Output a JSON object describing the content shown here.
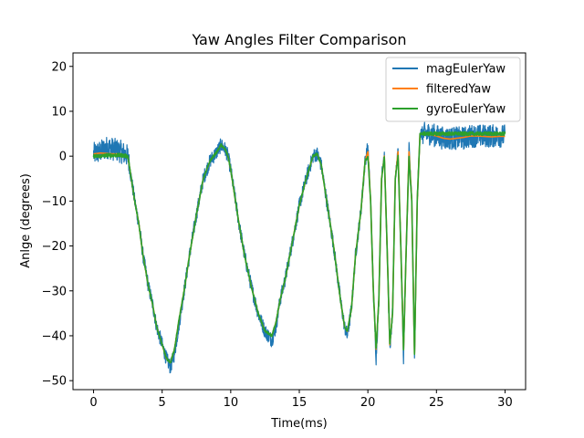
{
  "chart_data": {
    "type": "line",
    "title": "Yaw Angles Filter Comparison",
    "xlabel": "Time(ms)",
    "ylabel": "Anlge (degrees)",
    "xlim": [
      -1.5,
      31.5
    ],
    "ylim": [
      -52,
      23
    ],
    "xticks": [
      0,
      5,
      10,
      15,
      20,
      25,
      30
    ],
    "yticks": [
      20,
      10,
      0,
      -10,
      -20,
      -30,
      -40,
      -50
    ],
    "grid": false,
    "legend": "top-right",
    "series": [
      {
        "name": "magEulerYaw",
        "color": "#1f77b4",
        "noise": "high",
        "x": [
          0,
          0.5,
          1,
          1.5,
          2,
          2.5,
          3,
          3.3,
          3.6,
          4,
          4.3,
          4.6,
          5,
          5.3,
          5.6,
          5.9,
          6.2,
          6.6,
          7,
          7.5,
          8,
          8.5,
          9,
          9.3,
          9.6,
          9.8,
          10,
          10.3,
          10.6,
          11,
          11.5,
          12,
          12.5,
          13,
          13.3,
          13.6,
          14,
          14.5,
          15,
          15.5,
          16,
          16.3,
          16.6,
          17,
          17.5,
          18,
          18.3,
          18.5,
          18.8,
          19.1,
          19.5,
          19.8,
          20,
          20.2,
          20.4,
          20.6,
          20.8,
          21,
          21.2,
          21.4,
          21.6,
          21.8,
          22,
          22.2,
          22.4,
          22.6,
          22.8,
          23,
          23.2,
          23.4,
          23.6,
          23.8,
          24,
          24.5,
          25,
          25.5,
          26,
          26.5,
          27,
          27.5,
          28,
          28.5,
          29,
          29.5,
          30
        ],
        "y": [
          0.5,
          1,
          2,
          1.5,
          1,
          0,
          -10,
          -15,
          -22,
          -29,
          -33,
          -38,
          -42,
          -45,
          -47,
          -44,
          -38,
          -30,
          -22,
          -13,
          -5,
          -1,
          1,
          2.5,
          1.5,
          0,
          -3,
          -9,
          -15,
          -22,
          -29,
          -35,
          -39,
          -41,
          -38,
          -32,
          -27,
          -19,
          -11,
          -5,
          0,
          0.5,
          -2,
          -10,
          -20,
          -32,
          -38,
          -40,
          -34,
          -22,
          -12,
          -1,
          2,
          -10,
          -30,
          -45,
          -32,
          -5,
          1,
          -20,
          -43,
          -35,
          -5,
          2,
          -20,
          -45,
          -20,
          2,
          -10,
          -46,
          -10,
          5,
          5,
          5,
          4.5,
          4,
          4,
          4,
          4,
          4.5,
          4.5,
          4.5,
          4.5,
          4.5,
          4.5
        ]
      },
      {
        "name": "filteredYaw",
        "color": "#ff7f0e",
        "noise": "none",
        "x": [
          0,
          0.5,
          1,
          1.5,
          2,
          2.5,
          3,
          3.3,
          3.6,
          4,
          4.3,
          4.6,
          5,
          5.3,
          5.6,
          5.9,
          6.2,
          6.6,
          7,
          7.5,
          8,
          8.5,
          9,
          9.3,
          9.6,
          9.8,
          10,
          10.3,
          10.6,
          11,
          11.5,
          12,
          12.5,
          13,
          13.3,
          13.6,
          14,
          14.5,
          15,
          15.5,
          16,
          16.3,
          16.6,
          17,
          17.5,
          18,
          18.3,
          18.5,
          18.8,
          19.1,
          19.5,
          19.8,
          20,
          20.2,
          20.4,
          20.6,
          20.8,
          21,
          21.2,
          21.4,
          21.6,
          21.8,
          22,
          22.2,
          22.4,
          22.6,
          22.8,
          23,
          23.2,
          23.4,
          23.6,
          23.8,
          24,
          24.5,
          25,
          25.5,
          26,
          26.5,
          27,
          27.5,
          28,
          28.5,
          29,
          29.5,
          30
        ],
        "y": [
          0.5,
          0.7,
          0.6,
          0.5,
          0.5,
          0,
          -10,
          -15,
          -22,
          -29,
          -33,
          -38,
          -42,
          -45,
          -46,
          -43,
          -37,
          -30,
          -22,
          -13,
          -5,
          -1,
          1,
          2.5,
          1.5,
          0,
          -3,
          -9,
          -15,
          -22,
          -29,
          -35,
          -39,
          -40,
          -37,
          -32,
          -27,
          -19,
          -11,
          -5,
          0,
          0.5,
          -2,
          -10,
          -20,
          -32,
          -38,
          -39,
          -34,
          -22,
          -12,
          -1,
          1,
          -10,
          -30,
          -43,
          -32,
          -5,
          0,
          -20,
          -42,
          -35,
          -5,
          1,
          -20,
          -43,
          -20,
          1,
          -10,
          -44,
          -10,
          5,
          5,
          4.8,
          4.5,
          4,
          3.8,
          4,
          4.2,
          4.5,
          4.5,
          4.4,
          4.3,
          4.4,
          4.4
        ]
      },
      {
        "name": "gyroEulerYaw",
        "color": "#2ca02c",
        "noise": "low",
        "x": [
          0,
          0.5,
          1,
          1.5,
          2,
          2.5,
          3,
          3.3,
          3.6,
          4,
          4.3,
          4.6,
          5,
          5.3,
          5.6,
          5.9,
          6.2,
          6.6,
          7,
          7.5,
          8,
          8.5,
          9,
          9.3,
          9.6,
          9.8,
          10,
          10.3,
          10.6,
          11,
          11.5,
          12,
          12.5,
          13,
          13.3,
          13.6,
          14,
          14.5,
          15,
          15.5,
          16,
          16.3,
          16.6,
          17,
          17.5,
          18,
          18.3,
          18.5,
          18.8,
          19.1,
          19.5,
          19.8,
          20,
          20.2,
          20.4,
          20.6,
          20.8,
          21,
          21.2,
          21.4,
          21.6,
          21.8,
          22,
          22.2,
          22.4,
          22.6,
          22.8,
          23,
          23.2,
          23.4,
          23.6,
          23.8,
          24,
          24.5,
          25,
          25.5,
          26,
          26.5,
          27,
          27.5,
          28,
          28.5,
          29,
          29.5,
          30
        ],
        "y": [
          0,
          0,
          0.2,
          0.2,
          0.2,
          0,
          -10,
          -15,
          -22,
          -29,
          -33,
          -38,
          -42,
          -45,
          -46,
          -43,
          -37,
          -30,
          -22,
          -13,
          -5,
          -1,
          1,
          2.5,
          1.5,
          0,
          -3,
          -9,
          -15,
          -22,
          -29,
          -35,
          -39,
          -40,
          -37,
          -32,
          -27,
          -19,
          -11,
          -5,
          0,
          0.5,
          -2,
          -10,
          -20,
          -32,
          -38,
          -39,
          -34,
          -22,
          -12,
          -1,
          0,
          -10,
          -30,
          -43,
          -32,
          -5,
          0,
          -20,
          -42,
          -35,
          -5,
          0,
          -20,
          -43,
          -20,
          0,
          -10,
          -44,
          -10,
          5,
          5,
          5,
          5,
          5,
          5,
          5,
          5,
          5,
          5,
          5,
          5,
          5,
          5
        ]
      }
    ]
  }
}
